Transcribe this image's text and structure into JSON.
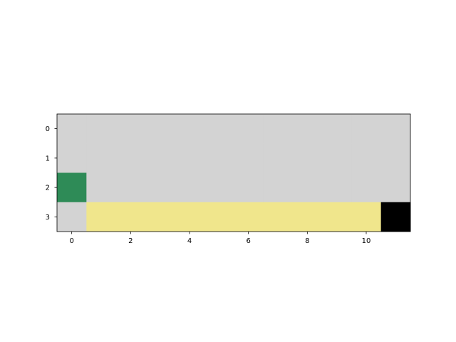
{
  "chart_data": {
    "type": "heatmap",
    "title": "",
    "xlabel": "",
    "ylabel": "",
    "n_rows": 4,
    "n_cols": 12,
    "x_ticks": [
      0,
      2,
      4,
      6,
      8,
      10
    ],
    "y_ticks": [
      0,
      1,
      2,
      3
    ],
    "xlim": [
      -0.5,
      11.5
    ],
    "ylim": [
      3.5,
      -0.5
    ],
    "grid": false,
    "legend": "none",
    "colors": {
      "empty": "#d3d3d3",
      "start": "#2e8b57",
      "cliff": "#f0e68c",
      "goal": "#000000"
    },
    "cells": [
      [
        "empty",
        "empty",
        "empty",
        "empty",
        "empty",
        "empty",
        "empty",
        "empty",
        "empty",
        "empty",
        "empty",
        "empty"
      ],
      [
        "empty",
        "empty",
        "empty",
        "empty",
        "empty",
        "empty",
        "empty",
        "empty",
        "empty",
        "empty",
        "empty",
        "empty"
      ],
      [
        "start",
        "empty",
        "empty",
        "empty",
        "empty",
        "empty",
        "empty",
        "empty",
        "empty",
        "empty",
        "empty",
        "empty"
      ],
      [
        "empty",
        "cliff",
        "cliff",
        "cliff",
        "cliff",
        "cliff",
        "cliff",
        "cliff",
        "cliff",
        "cliff",
        "cliff",
        "goal"
      ]
    ]
  }
}
